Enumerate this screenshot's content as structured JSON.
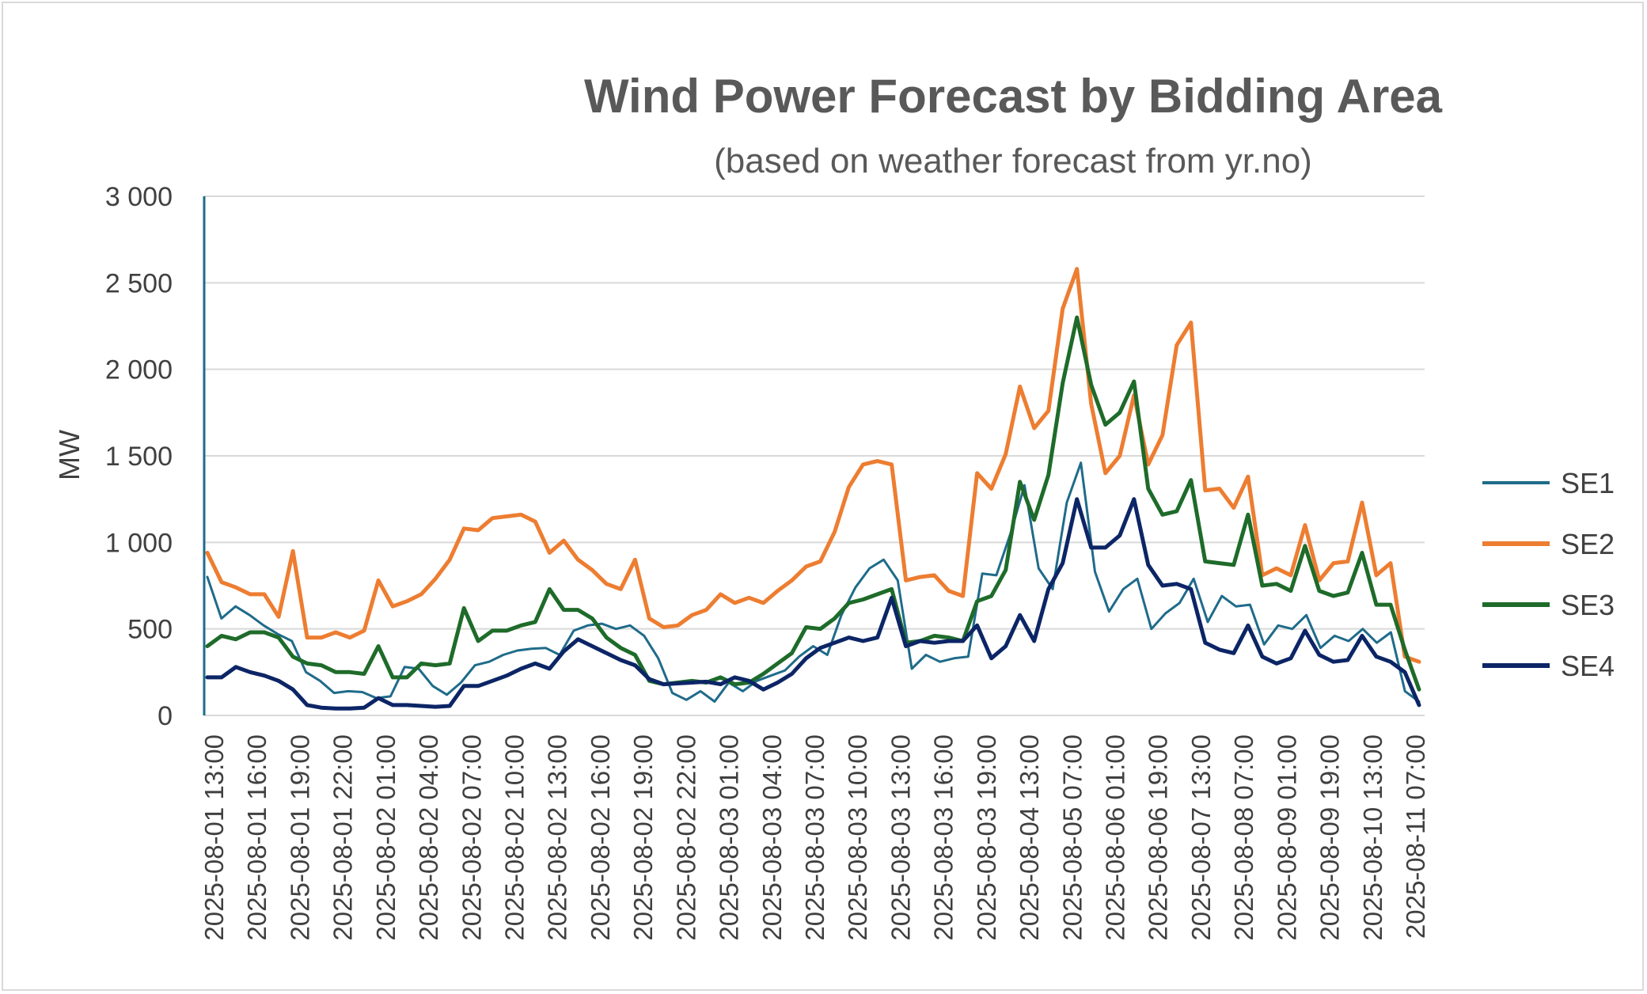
{
  "chart_data": {
    "type": "line",
    "title": "Wind Power Forecast by Bidding Area",
    "subtitle": "(based on weather forecast from yr.no)",
    "xlabel": "",
    "ylabel": "MW",
    "ylim": [
      0,
      3000
    ],
    "y_ticks": [
      "0",
      "500",
      "1 000",
      "1 500",
      "2 000",
      "2 500",
      "3 000"
    ],
    "grid": true,
    "legend_position": "right",
    "x_tick_labels": [
      "2025-08-01 13:00",
      "2025-08-01 16:00",
      "2025-08-01 19:00",
      "2025-08-01 22:00",
      "2025-08-02 01:00",
      "2025-08-02 04:00",
      "2025-08-02 07:00",
      "2025-08-02 10:00",
      "2025-08-02 13:00",
      "2025-08-02 16:00",
      "2025-08-02 19:00",
      "2025-08-02 22:00",
      "2025-08-03 01:00",
      "2025-08-03 04:00",
      "2025-08-03 07:00",
      "2025-08-03 10:00",
      "2025-08-03 13:00",
      "2025-08-03 16:00",
      "2025-08-03 19:00",
      "2025-08-04 13:00",
      "2025-08-05 07:00",
      "2025-08-06 01:00",
      "2025-08-06 19:00",
      "2025-08-07 13:00",
      "2025-08-08 07:00",
      "2025-08-09 01:00",
      "2025-08-09 19:00",
      "2025-08-10 13:00",
      "2025-08-11 07:00"
    ],
    "series": [
      {
        "name": "SE1",
        "color": "#1f6b8a",
        "width": 3,
        "values": [
          800,
          560,
          630,
          580,
          520,
          470,
          430,
          250,
          200,
          130,
          140,
          135,
          100,
          110,
          280,
          270,
          170,
          120,
          190,
          290,
          310,
          350,
          375,
          385,
          390,
          350,
          490,
          520,
          530,
          500,
          520,
          460,
          330,
          130,
          90,
          140,
          80,
          190,
          140,
          200,
          230,
          260,
          340,
          400,
          350,
          580,
          740,
          850,
          900,
          780,
          270,
          350,
          310,
          330,
          340,
          820,
          810,
          1050,
          1330,
          850,
          730,
          1230,
          1460,
          830,
          600,
          730,
          790,
          500,
          590,
          650,
          790,
          540,
          690,
          630,
          640,
          410,
          520,
          500,
          580,
          390,
          460,
          430,
          500,
          420,
          480,
          140,
          80
        ]
      },
      {
        "name": "SE2",
        "color": "#ed7d31",
        "width": 5,
        "values": [
          940,
          770,
          740,
          700,
          700,
          570,
          950,
          450,
          450,
          480,
          450,
          490,
          780,
          630,
          660,
          700,
          790,
          900,
          1080,
          1070,
          1140,
          1150,
          1160,
          1120,
          940,
          1010,
          900,
          840,
          760,
          730,
          900,
          560,
          510,
          520,
          580,
          610,
          700,
          650,
          680,
          650,
          720,
          780,
          860,
          890,
          1060,
          1320,
          1450,
          1470,
          1450,
          780,
          800,
          810,
          720,
          690,
          1400,
          1310,
          1510,
          1900,
          1660,
          1760,
          2350,
          2580,
          1800,
          1400,
          1500,
          1850,
          1450,
          1620,
          2140,
          2270,
          1300,
          1310,
          1200,
          1380,
          810,
          850,
          810,
          1100,
          780,
          880,
          890,
          1230,
          810,
          880,
          340,
          310
        ]
      },
      {
        "name": "SE3",
        "color": "#1e6b2a",
        "width": 5,
        "values": [
          400,
          460,
          440,
          480,
          480,
          450,
          340,
          300,
          290,
          250,
          250,
          240,
          400,
          220,
          220,
          300,
          290,
          300,
          620,
          430,
          490,
          490,
          520,
          540,
          730,
          610,
          610,
          560,
          450,
          390,
          350,
          200,
          180,
          190,
          200,
          190,
          220,
          180,
          190,
          240,
          300,
          360,
          510,
          500,
          560,
          650,
          670,
          700,
          730,
          420,
          430,
          460,
          450,
          430,
          660,
          690,
          840,
          1350,
          1130,
          1390,
          1920,
          2300,
          1910,
          1680,
          1750,
          1930,
          1310,
          1160,
          1180,
          1360,
          890,
          880,
          870,
          1160,
          750,
          760,
          720,
          980,
          720,
          690,
          710,
          940,
          640,
          640,
          380,
          150
        ]
      },
      {
        "name": "SE4",
        "color": "#0c2566",
        "width": 5,
        "values": [
          220,
          220,
          280,
          250,
          230,
          200,
          150,
          60,
          45,
          40,
          40,
          45,
          100,
          60,
          60,
          55,
          50,
          55,
          170,
          170,
          200,
          230,
          270,
          300,
          270,
          370,
          440,
          400,
          360,
          320,
          290,
          210,
          180,
          185,
          190,
          195,
          180,
          220,
          200,
          150,
          190,
          240,
          330,
          390,
          420,
          450,
          430,
          450,
          680,
          400,
          430,
          420,
          430,
          430,
          520,
          330,
          400,
          580,
          430,
          730,
          880,
          1250,
          970,
          970,
          1040,
          1250,
          870,
          750,
          760,
          730,
          420,
          380,
          360,
          520,
          340,
          300,
          330,
          490,
          350,
          310,
          320,
          460,
          340,
          310,
          250,
          60
        ]
      }
    ]
  },
  "legend": {
    "items": [
      {
        "label": "SE1",
        "color": "#1f6b8a"
      },
      {
        "label": "SE2",
        "color": "#ed7d31"
      },
      {
        "label": "SE3",
        "color": "#1e6b2a"
      },
      {
        "label": "SE4",
        "color": "#0c2566"
      }
    ]
  }
}
